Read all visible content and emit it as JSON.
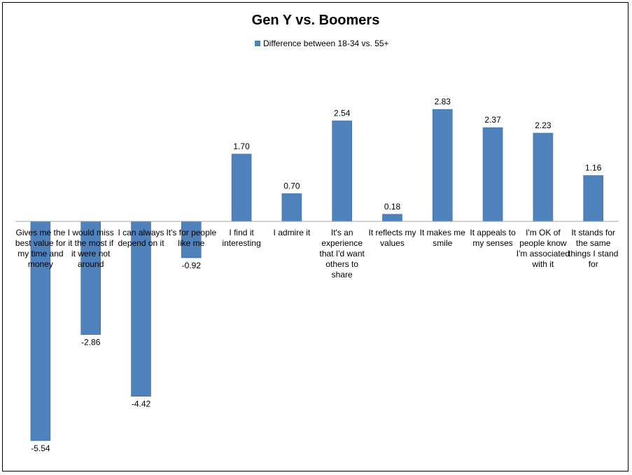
{
  "chart_data": {
    "type": "bar",
    "title": "Gen Y vs. Boomers",
    "xlabel": "",
    "ylabel": "",
    "grid": false,
    "legend_position": "top",
    "categories": [
      "Gives me the best value for my time and money",
      "I would miss it the most if it were not around",
      "I can always depend on it",
      "It's for people like me",
      "I find it interesting",
      "I admire it",
      "It's an experience that I'd want others to share",
      "It reflects my values",
      "It makes me smile",
      "It appeals to my senses",
      "I'm OK of people know I'm associated with it",
      "It stands for the same things I stand for"
    ],
    "category_lines": [
      [
        "Gives me the",
        "best value for",
        "my time and",
        "money"
      ],
      [
        "I would miss",
        "it the most if",
        "it were not",
        "around"
      ],
      [
        "I can always",
        "depend on it"
      ],
      [
        "It's for people",
        "like me"
      ],
      [
        "I find it",
        "interesting"
      ],
      [
        "I admire it"
      ],
      [
        "It's an",
        "experience",
        "that I'd want",
        "others to",
        "share"
      ],
      [
        "It reflects my",
        "values"
      ],
      [
        "It makes me",
        "smile"
      ],
      [
        "It appeals to",
        "my senses"
      ],
      [
        "I'm OK of",
        "people know",
        "I'm associated",
        "with it"
      ],
      [
        "It stands for",
        "the same",
        "things I stand",
        "for"
      ]
    ],
    "series": [
      {
        "name": "Difference between 18-34 vs. 55+",
        "values": [
          -5.54,
          -2.86,
          -4.42,
          -0.92,
          1.7,
          0.7,
          2.54,
          0.18,
          2.83,
          2.37,
          2.23,
          1.16
        ],
        "labels": [
          "-5.54",
          "-2.86",
          "-4.42",
          "-0.92",
          "1.70",
          "0.70",
          "2.54",
          "0.18",
          "2.83",
          "2.37",
          "2.23",
          "1.16"
        ]
      }
    ],
    "ylim": [
      -5.54,
      2.83
    ],
    "colors": {
      "bar": "#4F81BD",
      "bar_edge": "#3A6EA5",
      "axis": "#A0A0A0",
      "frame": "#000000"
    }
  }
}
